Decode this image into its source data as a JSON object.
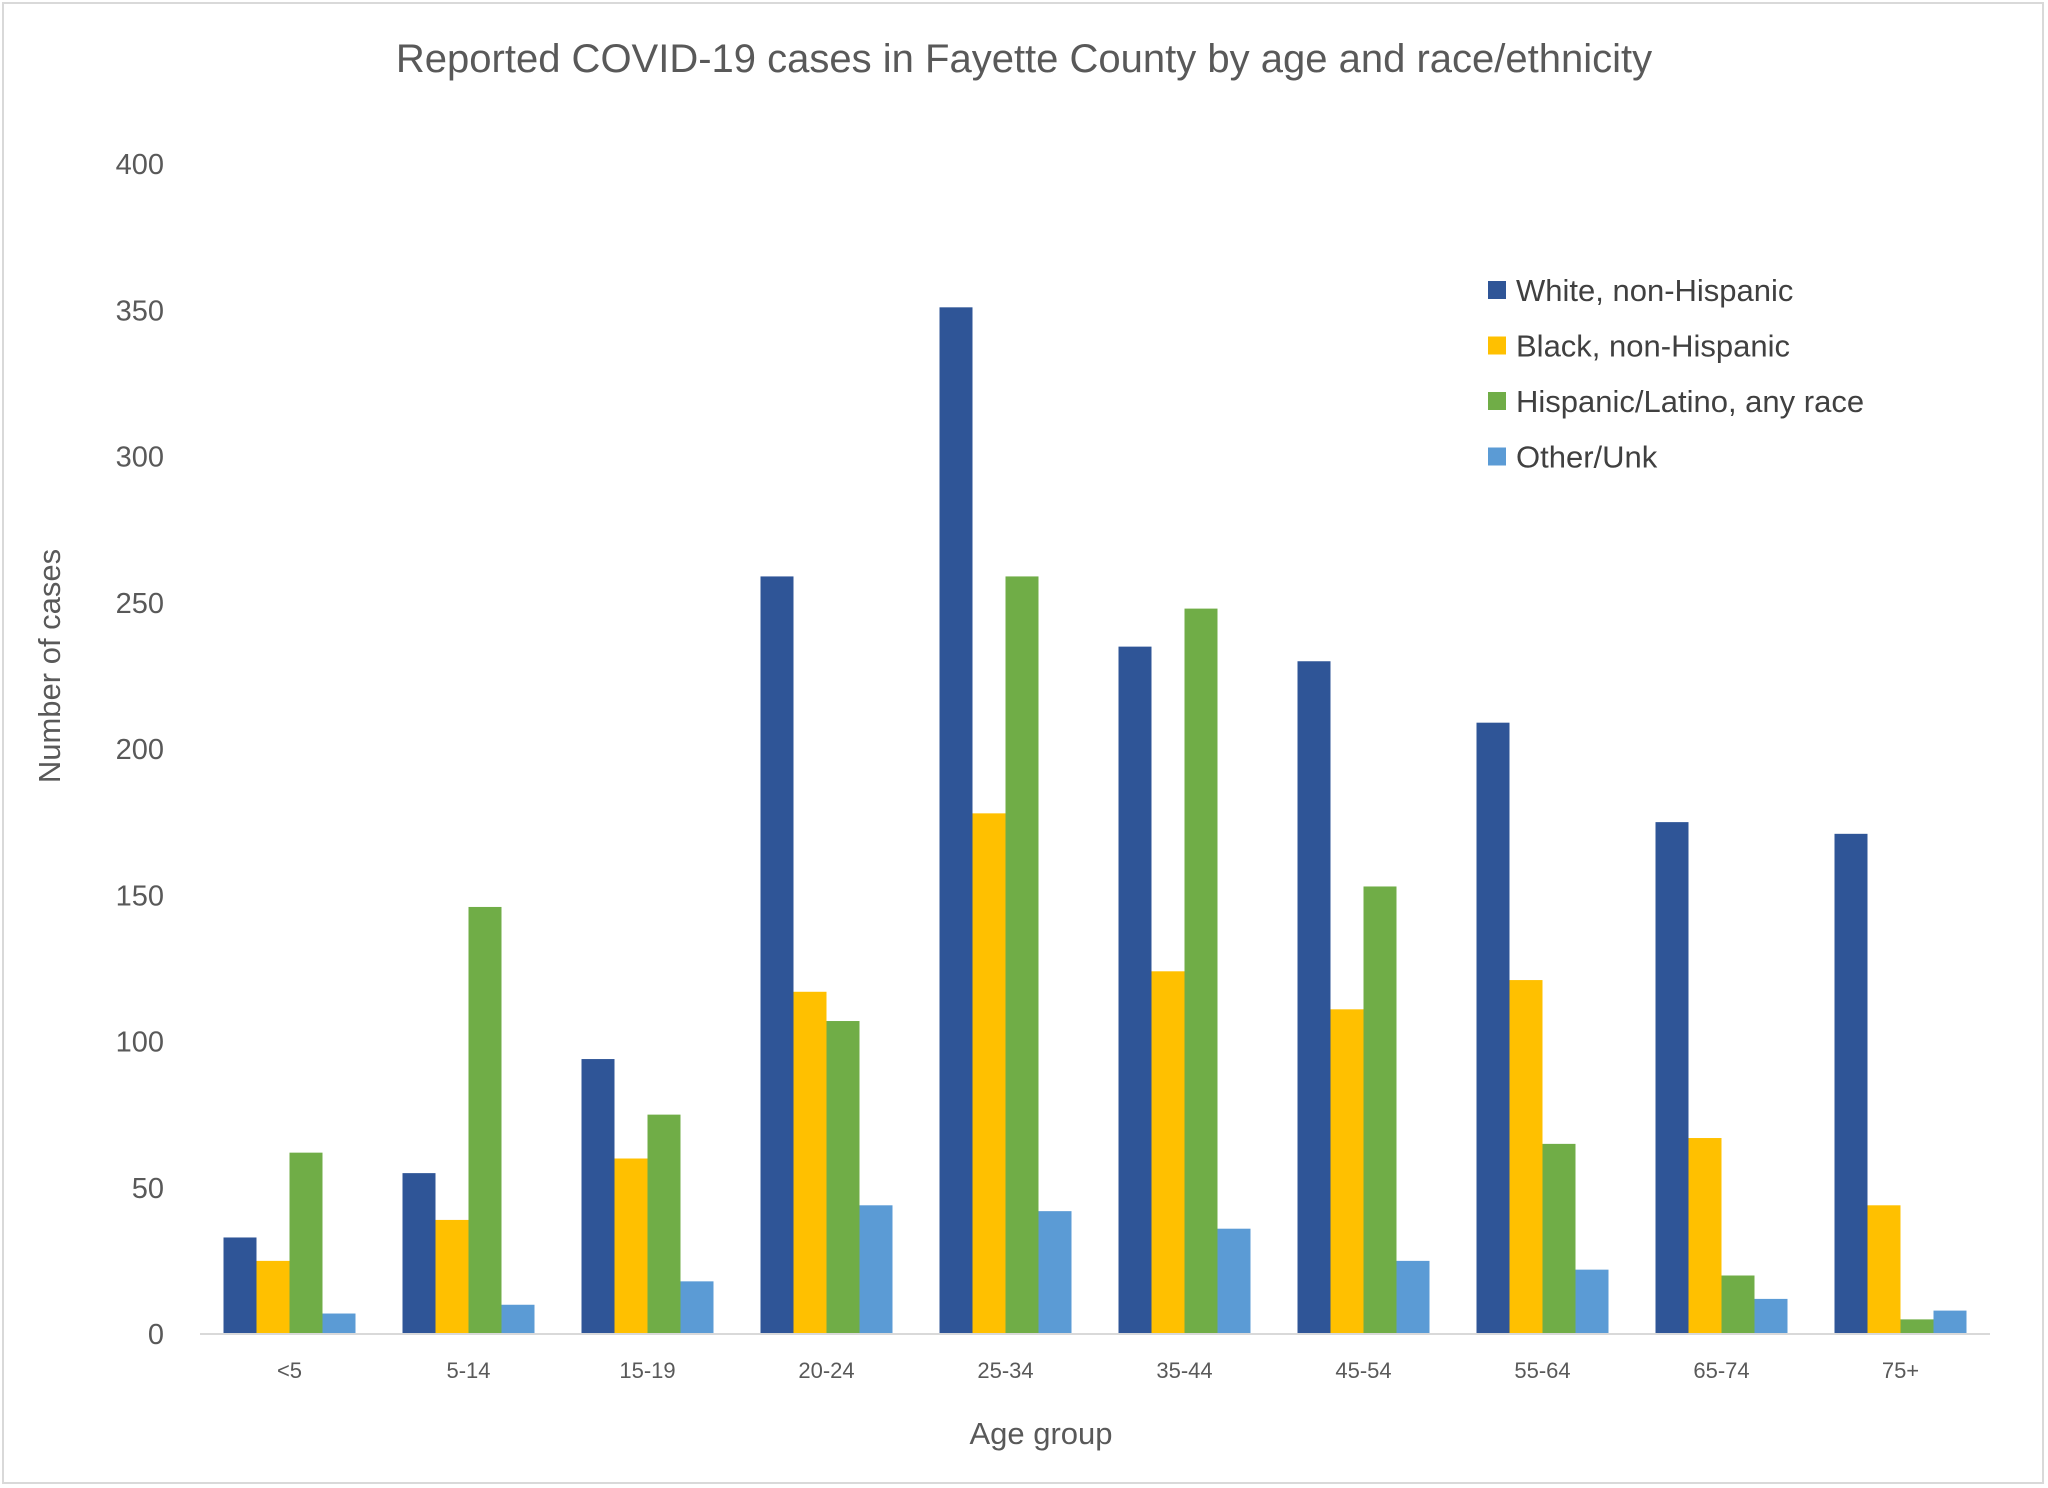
{
  "chart_data": {
    "type": "bar",
    "title": "Reported COVID-19 cases in Fayette County by age and race/ethnicity",
    "xlabel": "Age group",
    "ylabel": "Number of cases",
    "ylim": [
      0,
      400
    ],
    "yticks": [
      "0",
      "50",
      "100",
      "150",
      "200",
      "250",
      "300",
      "350",
      "400"
    ],
    "grid": false,
    "legend_position": "top-right",
    "categories": [
      "<5",
      "5-14",
      "15-19",
      "20-24",
      "25-34",
      "35-44",
      "45-54",
      "55-64",
      "65-74",
      "75+"
    ],
    "series": [
      {
        "name": "White, non-Hispanic",
        "color": "#2F5597",
        "values": [
          33,
          55,
          94,
          259,
          351,
          235,
          230,
          209,
          175,
          171
        ]
      },
      {
        "name": "Black, non-Hispanic",
        "color": "#FFC000",
        "values": [
          25,
          39,
          60,
          117,
          178,
          124,
          111,
          121,
          67,
          44
        ]
      },
      {
        "name": "Hispanic/Latino, any race",
        "color": "#70AD47",
        "values": [
          62,
          146,
          75,
          107,
          259,
          248,
          153,
          65,
          20,
          5
        ]
      },
      {
        "name": "Other/Unk",
        "color": "#5B9BD5",
        "values": [
          7,
          10,
          18,
          44,
          42,
          36,
          25,
          22,
          12,
          8
        ]
      }
    ]
  }
}
